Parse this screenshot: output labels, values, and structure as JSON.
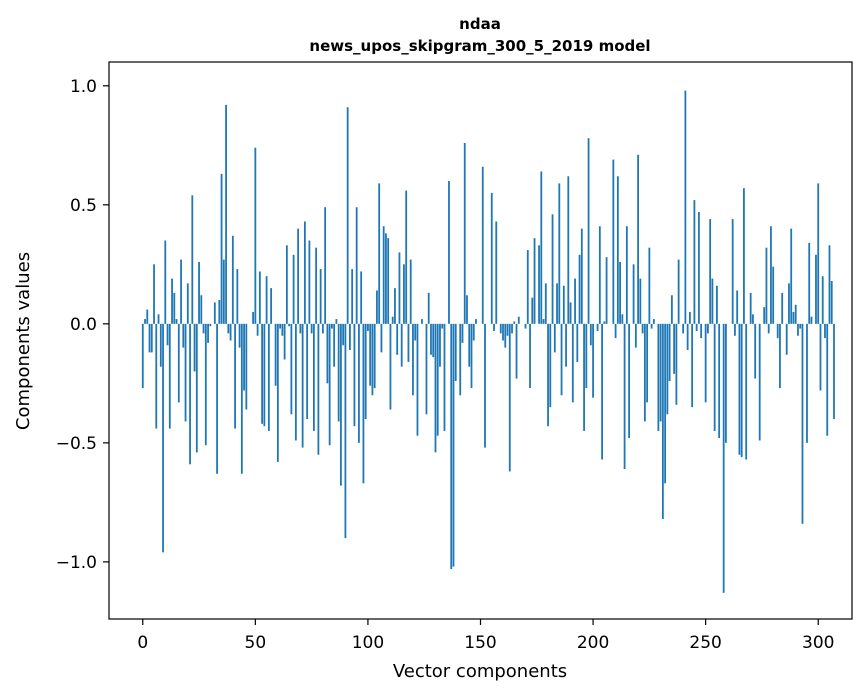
{
  "chart_data": {
    "type": "bar",
    "title_line1": "ndaa",
    "title_line2": "news_upos_skipgram_300_5_2019 model",
    "xlabel": "Vector components",
    "ylabel": "Components values",
    "xlim": [
      -15,
      315
    ],
    "ylim": [
      -1.24,
      1.1
    ],
    "xticks": [
      0,
      50,
      100,
      150,
      200,
      250,
      300
    ],
    "xtick_labels": [
      "0",
      "50",
      "100",
      "150",
      "200",
      "250",
      "300"
    ],
    "yticks": [
      -1.0,
      -0.5,
      0.0,
      0.5,
      1.0
    ],
    "ytick_labels": [
      "−1.0",
      "−0.5",
      "0.0",
      "0.5",
      "1.0"
    ],
    "bar_color": "#1f77b4",
    "values": [
      -0.27,
      0.02,
      0.06,
      -0.12,
      -0.12,
      0.25,
      -0.44,
      0.04,
      -0.18,
      -0.96,
      0.35,
      -0.09,
      -0.44,
      0.19,
      0.13,
      0.02,
      -0.33,
      0.27,
      -0.1,
      -0.41,
      0.17,
      -0.59,
      0.54,
      -0.2,
      -0.54,
      0.26,
      0.12,
      -0.04,
      -0.51,
      -0.08,
      -0.01,
      0.0,
      0.09,
      -0.63,
      0.1,
      0.63,
      0.27,
      0.92,
      -0.04,
      -0.07,
      0.37,
      -0.44,
      0.23,
      -0.1,
      -0.63,
      -0.28,
      -0.36,
      0.0,
      0.0,
      0.05,
      0.74,
      -0.05,
      0.22,
      -0.42,
      -0.43,
      0.2,
      -0.45,
      0.15,
      0.0,
      -0.26,
      -0.58,
      -0.02,
      -0.05,
      -0.15,
      0.33,
      -0.01,
      -0.38,
      0.29,
      -0.49,
      0.4,
      -0.04,
      -0.52,
      0.43,
      -0.4,
      0.35,
      -0.04,
      -0.45,
      0.32,
      -0.55,
      0.23,
      -0.04,
      0.49,
      -0.25,
      -0.51,
      -0.02,
      -0.18,
      0.02,
      -0.41,
      -0.68,
      -0.09,
      -0.9,
      0.91,
      -0.11,
      0.23,
      -0.43,
      0.49,
      -0.5,
      0.22,
      -0.67,
      -0.4,
      -0.03,
      -0.26,
      -0.3,
      -0.27,
      0.14,
      0.59,
      -0.12,
      0.41,
      0.38,
      0.36,
      -0.36,
      0.03,
      0.15,
      -0.13,
      0.3,
      -0.18,
      0.25,
      0.56,
      -0.16,
      0.27,
      -0.3,
      -0.07,
      -0.47,
      0.0,
      0.02,
      0.0,
      -0.38,
      0.13,
      -0.13,
      -0.14,
      -0.54,
      -0.47,
      -0.18,
      -0.02,
      -0.45,
      0.0,
      0.6,
      -1.03,
      -1.02,
      -0.24,
      0.0,
      -0.3,
      -0.08,
      0.76,
      0.12,
      -0.18,
      -0.27,
      -0.07,
      0.02,
      0.0,
      0.0,
      0.66,
      -0.52,
      0.0,
      0.0,
      0.55,
      -0.03,
      0.43,
      0.0,
      -0.04,
      -0.07,
      -0.1,
      -0.05,
      -0.62,
      -0.04,
      0.01,
      -0.23,
      0.03,
      0.0,
      0.0,
      -0.02,
      0.31,
      -0.27,
      0.11,
      0.36,
      0.0,
      0.33,
      0.64,
      0.02,
      0.17,
      -0.43,
      -0.35,
      0.46,
      -0.12,
      0.17,
      0.59,
      -0.3,
      0.16,
      -0.18,
      0.62,
      0.09,
      -0.33,
      0.19,
      -0.16,
      0.29,
      0.4,
      -0.45,
      -0.27,
      0.78,
      -0.09,
      -0.31,
      0.0,
      -0.03,
      0.41,
      -0.57,
      0.01,
      0.28,
      0.0,
      0.0,
      0.69,
      -0.06,
      0.62,
      0.26,
      0.04,
      -0.61,
      0.41,
      -0.48,
      0.0,
      0.25,
      -0.1,
      0.71,
      0.19,
      -0.04,
      -0.41,
      -0.33,
      0.32,
      -0.02,
      0.02,
      0.0,
      -0.45,
      -0.41,
      -0.82,
      -0.67,
      -0.38,
      -0.24,
      0.12,
      -0.21,
      -0.34,
      0.27,
      0.0,
      -0.04,
      0.98,
      -0.11,
      0.05,
      -0.35,
      0.52,
      -0.03,
      0.47,
      -0.06,
      0.0,
      -0.33,
      -0.04,
      0.44,
      0.19,
      -0.45,
      0.16,
      -0.48,
      0.0,
      -1.13,
      -0.5,
      0.0,
      0.0,
      0.44,
      -0.05,
      0.14,
      -0.55,
      -0.56,
      0.57,
      -0.57,
      0.0,
      0.13,
      0.04,
      -0.23,
      0.0,
      -0.49,
      0.0,
      0.07,
      0.32,
      -0.04,
      0.41,
      0.24,
      0.0,
      -0.06,
      -0.27,
      0.13,
      0.0,
      -0.13,
      0.17,
      0.4,
      0.05,
      0.08,
      -0.05,
      -0.02,
      -0.84,
      0.0,
      -0.5,
      0.34,
      0.03,
      0.0,
      0.29,
      0.59,
      -0.28,
      0.2,
      -0.06,
      -0.47,
      0.33,
      0.18,
      -0.4
    ]
  }
}
